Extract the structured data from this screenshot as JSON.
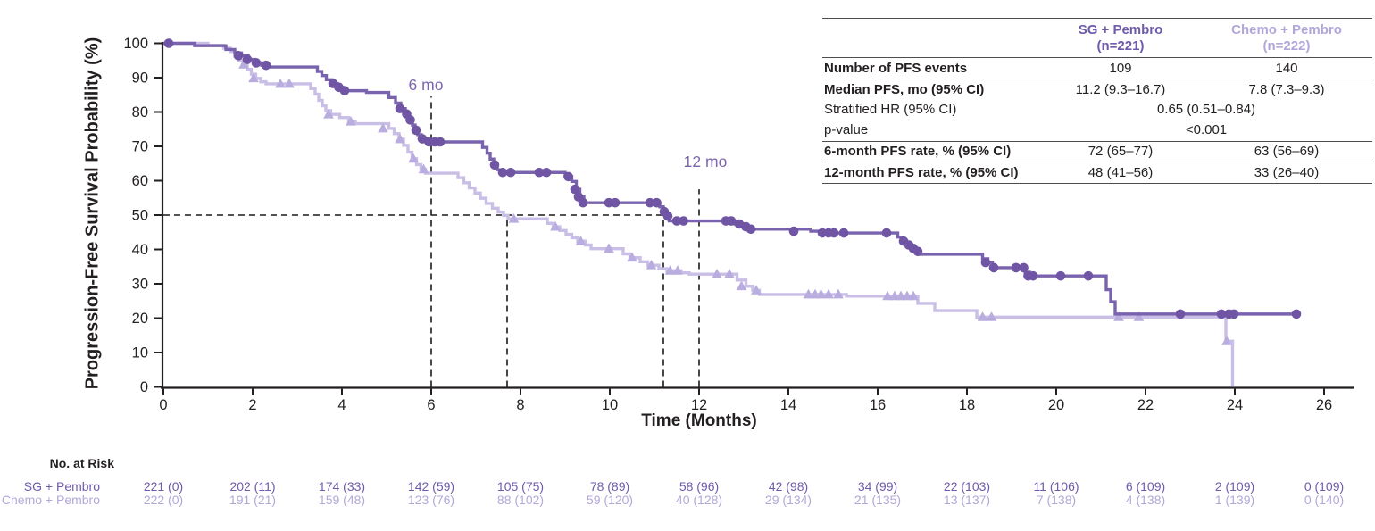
{
  "colors": {
    "sg_line": "#7A63AE",
    "sg_marker": "#6F55A3",
    "sg_text": "#6F5BAB",
    "chemo_line": "#C9BFE6",
    "chemo_marker": "#B9ACDE",
    "chemo_text": "#B3A7DA",
    "annotation": "#7C66B0",
    "axis": "#231F20",
    "dashed": "#1A1A1A"
  },
  "chart_data": {
    "type": "line",
    "subtype": "kaplan-meier-step",
    "title": "",
    "x_axis_label": "Time (Months)",
    "y_axis_label": "Progression-Free Survival Probability (%)",
    "xlim": [
      0,
      26
    ],
    "ylim": [
      0,
      100
    ],
    "grid": false,
    "x_ticks": [
      0,
      2,
      4,
      6,
      8,
      10,
      12,
      14,
      16,
      18,
      20,
      22,
      24,
      26
    ],
    "y_ticks": [
      0,
      10,
      20,
      30,
      40,
      50,
      60,
      70,
      80,
      90,
      100
    ],
    "annotations": [
      {
        "label": "6 mo",
        "x": 6
      },
      {
        "label": "12 mo",
        "x": 12
      }
    ],
    "ref_lines": [
      {
        "type": "h",
        "y": 50,
        "x1": 0,
        "x2": 11.2
      },
      {
        "type": "v",
        "x": 6,
        "y1": 0,
        "y2": 84.5
      },
      {
        "type": "v",
        "x": 7.7,
        "y1": 0,
        "y2": 50
      },
      {
        "type": "v",
        "x": 11.2,
        "y1": 0,
        "y2": 50
      },
      {
        "type": "v",
        "x": 12,
        "y1": 0,
        "y2": 57.5
      }
    ],
    "series": [
      {
        "name": "Chemo + Pembro",
        "marker": "triangle",
        "color_key": "chemo_line",
        "marker_color_key": "chemo_marker",
        "end": 23.95,
        "steps": [
          [
            0,
            100
          ],
          [
            1,
            99.4
          ],
          [
            1.35,
            98.6
          ],
          [
            1.5,
            97.6
          ],
          [
            1.6,
            96.3
          ],
          [
            1.68,
            95
          ],
          [
            1.78,
            93.8
          ],
          [
            1.88,
            92.4
          ],
          [
            1.97,
            91
          ],
          [
            2.07,
            89.8
          ],
          [
            2.18,
            88.8
          ],
          [
            2.3,
            88.2
          ],
          [
            3.3,
            86.8
          ],
          [
            3.4,
            85.2
          ],
          [
            3.48,
            83.4
          ],
          [
            3.56,
            81.8
          ],
          [
            3.64,
            80.4
          ],
          [
            3.75,
            79.3
          ],
          [
            3.95,
            78.4
          ],
          [
            4.15,
            77.2
          ],
          [
            4.3,
            76.6
          ],
          [
            5.05,
            75.2
          ],
          [
            5.17,
            73.7
          ],
          [
            5.28,
            72.1
          ],
          [
            5.38,
            70.3
          ],
          [
            5.48,
            68.3
          ],
          [
            5.57,
            66.4
          ],
          [
            5.67,
            64.7
          ],
          [
            5.77,
            63.3
          ],
          [
            5.87,
            62.2
          ],
          [
            6.6,
            60.9
          ],
          [
            6.73,
            59.4
          ],
          [
            6.85,
            57.9
          ],
          [
            6.98,
            56.4
          ],
          [
            7.1,
            54.9
          ],
          [
            7.23,
            53.4
          ],
          [
            7.37,
            52
          ],
          [
            7.5,
            50.9
          ],
          [
            7.62,
            49.9
          ],
          [
            7.72,
            48.9
          ],
          [
            8.6,
            47.6
          ],
          [
            8.73,
            46.6
          ],
          [
            8.88,
            45.5
          ],
          [
            9.02,
            44.4
          ],
          [
            9.15,
            43.4
          ],
          [
            9.28,
            42.4
          ],
          [
            9.45,
            41.3
          ],
          [
            9.58,
            40.2
          ],
          [
            10.3,
            38.7
          ],
          [
            10.45,
            37.6
          ],
          [
            10.68,
            36.4
          ],
          [
            10.85,
            35.4
          ],
          [
            11.1,
            34.4
          ],
          [
            11.28,
            33.8
          ],
          [
            11.6,
            33.2
          ],
          [
            11.78,
            32.8
          ],
          [
            12.85,
            31.1
          ],
          [
            13.05,
            29.3
          ],
          [
            13.2,
            28.1
          ],
          [
            13.35,
            26.9
          ],
          [
            15.3,
            26.4
          ],
          [
            16.9,
            24.3
          ],
          [
            17.28,
            22.2
          ],
          [
            18.22,
            20.3
          ],
          [
            23.8,
            13.3
          ],
          [
            23.95,
            0
          ]
        ],
        "markers": [
          [
            1.8,
            93.8
          ],
          [
            2.02,
            89.8
          ],
          [
            2.62,
            88.2
          ],
          [
            2.82,
            88.2
          ],
          [
            3.7,
            79.3
          ],
          [
            4.2,
            77.2
          ],
          [
            4.92,
            75.2
          ],
          [
            5.3,
            72.1
          ],
          [
            5.6,
            66.4
          ],
          [
            5.83,
            63.3
          ],
          [
            7.85,
            48.9
          ],
          [
            8.78,
            46.6
          ],
          [
            9.35,
            42.4
          ],
          [
            9.98,
            40.2
          ],
          [
            10.5,
            37.6
          ],
          [
            10.93,
            35.4
          ],
          [
            11.35,
            33.8
          ],
          [
            11.52,
            33.8
          ],
          [
            12.4,
            32.8
          ],
          [
            12.68,
            32.8
          ],
          [
            12.95,
            29.3
          ],
          [
            13.28,
            28.1
          ],
          [
            14.45,
            26.9
          ],
          [
            14.6,
            26.9
          ],
          [
            14.73,
            26.9
          ],
          [
            14.9,
            26.9
          ],
          [
            15.12,
            26.9
          ],
          [
            16.22,
            26.4
          ],
          [
            16.38,
            26.4
          ],
          [
            16.52,
            26.4
          ],
          [
            16.66,
            26.4
          ],
          [
            16.8,
            26.4
          ],
          [
            18.35,
            20.3
          ],
          [
            18.55,
            20.3
          ],
          [
            21.4,
            20.3
          ],
          [
            21.85,
            20.3
          ],
          [
            23.82,
            13.3
          ]
        ]
      },
      {
        "name": "SG + Pembro",
        "marker": "circle",
        "color_key": "sg_line",
        "marker_color_key": "sg_marker",
        "end": 25.4,
        "steps": [
          [
            0,
            100
          ],
          [
            0.7,
            99.3
          ],
          [
            1.4,
            98.2
          ],
          [
            1.6,
            97.2
          ],
          [
            1.75,
            96.4
          ],
          [
            1.9,
            95.3
          ],
          [
            2.05,
            94.3
          ],
          [
            2.2,
            93.6
          ],
          [
            2.35,
            93.1
          ],
          [
            3.45,
            91.8
          ],
          [
            3.55,
            90.6
          ],
          [
            3.65,
            89.4
          ],
          [
            3.78,
            88.3
          ],
          [
            3.9,
            87.2
          ],
          [
            4.02,
            86.2
          ],
          [
            4.55,
            85.7
          ],
          [
            5.05,
            84.2
          ],
          [
            5.2,
            82.6
          ],
          [
            5.32,
            81
          ],
          [
            5.42,
            79.4
          ],
          [
            5.5,
            77.7
          ],
          [
            5.58,
            76.2
          ],
          [
            5.64,
            74.7
          ],
          [
            5.7,
            73.4
          ],
          [
            5.78,
            72.2
          ],
          [
            5.88,
            71.3
          ],
          [
            7.15,
            69.7
          ],
          [
            7.25,
            68
          ],
          [
            7.32,
            66.3
          ],
          [
            7.4,
            64.6
          ],
          [
            7.48,
            63.2
          ],
          [
            7.57,
            62.4
          ],
          [
            9,
            61.2
          ],
          [
            9.15,
            59.8
          ],
          [
            9.25,
            57.5
          ],
          [
            9.33,
            55.3
          ],
          [
            9.42,
            53.6
          ],
          [
            11.12,
            52.4
          ],
          [
            11.2,
            51
          ],
          [
            11.27,
            49.7
          ],
          [
            11.33,
            48.3
          ],
          [
            12.8,
            47.4
          ],
          [
            12.98,
            46.6
          ],
          [
            13.12,
            45.9
          ],
          [
            14.5,
            45.3
          ],
          [
            14.72,
            44.8
          ],
          [
            16.45,
            43.6
          ],
          [
            16.55,
            42.4
          ],
          [
            16.65,
            41.3
          ],
          [
            16.75,
            40.3
          ],
          [
            16.85,
            39.4
          ],
          [
            16.93,
            38.6
          ],
          [
            18.35,
            37.3
          ],
          [
            18.47,
            36.2
          ],
          [
            18.57,
            34.7
          ],
          [
            19.3,
            33.4
          ],
          [
            19.4,
            32.3
          ],
          [
            21.12,
            28.3
          ],
          [
            21.22,
            24.8
          ],
          [
            21.32,
            21.2
          ]
        ],
        "markers": [
          [
            0.12,
            100
          ],
          [
            1.68,
            96.4
          ],
          [
            1.88,
            95.3
          ],
          [
            2.08,
            94.3
          ],
          [
            2.3,
            93.6
          ],
          [
            3.8,
            88.3
          ],
          [
            3.93,
            87.2
          ],
          [
            4.06,
            86.2
          ],
          [
            5.3,
            81
          ],
          [
            5.45,
            79.4
          ],
          [
            5.53,
            77.7
          ],
          [
            5.66,
            74.7
          ],
          [
            5.8,
            72.2
          ],
          [
            5.95,
            71.3
          ],
          [
            6.08,
            71.3
          ],
          [
            6.2,
            71.3
          ],
          [
            7.42,
            64.6
          ],
          [
            7.6,
            62.4
          ],
          [
            7.78,
            62.4
          ],
          [
            8.42,
            62.4
          ],
          [
            8.58,
            62.4
          ],
          [
            9.07,
            61.2
          ],
          [
            9.22,
            57.5
          ],
          [
            9.3,
            55.3
          ],
          [
            9.4,
            53.6
          ],
          [
            9.98,
            53.6
          ],
          [
            10.12,
            53.6
          ],
          [
            10.9,
            53.6
          ],
          [
            11.05,
            53.6
          ],
          [
            11.22,
            51
          ],
          [
            11.3,
            49.7
          ],
          [
            11.5,
            48.3
          ],
          [
            11.65,
            48.3
          ],
          [
            12.6,
            48.3
          ],
          [
            12.72,
            48.3
          ],
          [
            12.9,
            47.4
          ],
          [
            13.05,
            46.6
          ],
          [
            13.16,
            45.9
          ],
          [
            14.12,
            45.3
          ],
          [
            14.76,
            44.8
          ],
          [
            14.9,
            44.8
          ],
          [
            15.02,
            44.8
          ],
          [
            15.24,
            44.8
          ],
          [
            16.2,
            44.8
          ],
          [
            16.58,
            42.4
          ],
          [
            16.7,
            41.3
          ],
          [
            16.8,
            40.3
          ],
          [
            16.9,
            39.4
          ],
          [
            18.42,
            36.2
          ],
          [
            18.6,
            34.7
          ],
          [
            19.1,
            34.7
          ],
          [
            19.27,
            34.7
          ],
          [
            19.37,
            32.3
          ],
          [
            19.48,
            32.3
          ],
          [
            20.1,
            32.3
          ],
          [
            20.72,
            32.3
          ],
          [
            22.78,
            21.2
          ],
          [
            23.7,
            21.2
          ],
          [
            23.87,
            21.2
          ],
          [
            23.98,
            21.2
          ],
          [
            25.38,
            21.2
          ]
        ]
      }
    ]
  },
  "stats_table": {
    "sg_header": {
      "name": "SG + Pembro",
      "n": "(n=221)"
    },
    "chemo_header": {
      "name": "Chemo + Pembro",
      "n": "(n=222)"
    },
    "rows": {
      "events": {
        "label": "Number of PFS events",
        "sg": "109",
        "chemo": "140"
      },
      "median": {
        "label": "Median PFS, mo (95% CI)",
        "sg": "11.2 (9.3–16.7)",
        "chemo": "7.8 (7.3–9.3)"
      },
      "hr": {
        "label": "Stratified HR (95% CI)",
        "value": "0.65 (0.51–0.84)"
      },
      "pvalue": {
        "label": "p-value",
        "value": "<0.001"
      },
      "rate6": {
        "label": "6-month PFS rate, % (95% CI)",
        "sg": "72 (65–77)",
        "chemo": "63 (56–69)"
      },
      "rate12": {
        "label": "12-month PFS rate, % (95% CI)",
        "sg": "48 (41–56)",
        "chemo": "33 (26–40)"
      }
    }
  },
  "risk_table": {
    "title": "No. at Risk",
    "rows": [
      {
        "name": "SG + Pembro",
        "color_key": "sg_text",
        "values": [
          "221 (0)",
          "202 (11)",
          "174 (33)",
          "142 (59)",
          "105 (75)",
          "78 (89)",
          "58 (96)",
          "42 (98)",
          "34 (99)",
          "22 (103)",
          "11 (106)",
          "6 (109)",
          "2 (109)",
          "0 (109)"
        ]
      },
      {
        "name": "Chemo + Pembro",
        "color_key": "chemo_text",
        "values": [
          "222 (0)",
          "191 (21)",
          "159 (48)",
          "123 (76)",
          "88 (102)",
          "59 (120)",
          "40 (128)",
          "29 (134)",
          "21 (135)",
          "13 (137)",
          "7 (138)",
          "4 (138)",
          "1 (139)",
          "0 (140)"
        ]
      }
    ]
  }
}
